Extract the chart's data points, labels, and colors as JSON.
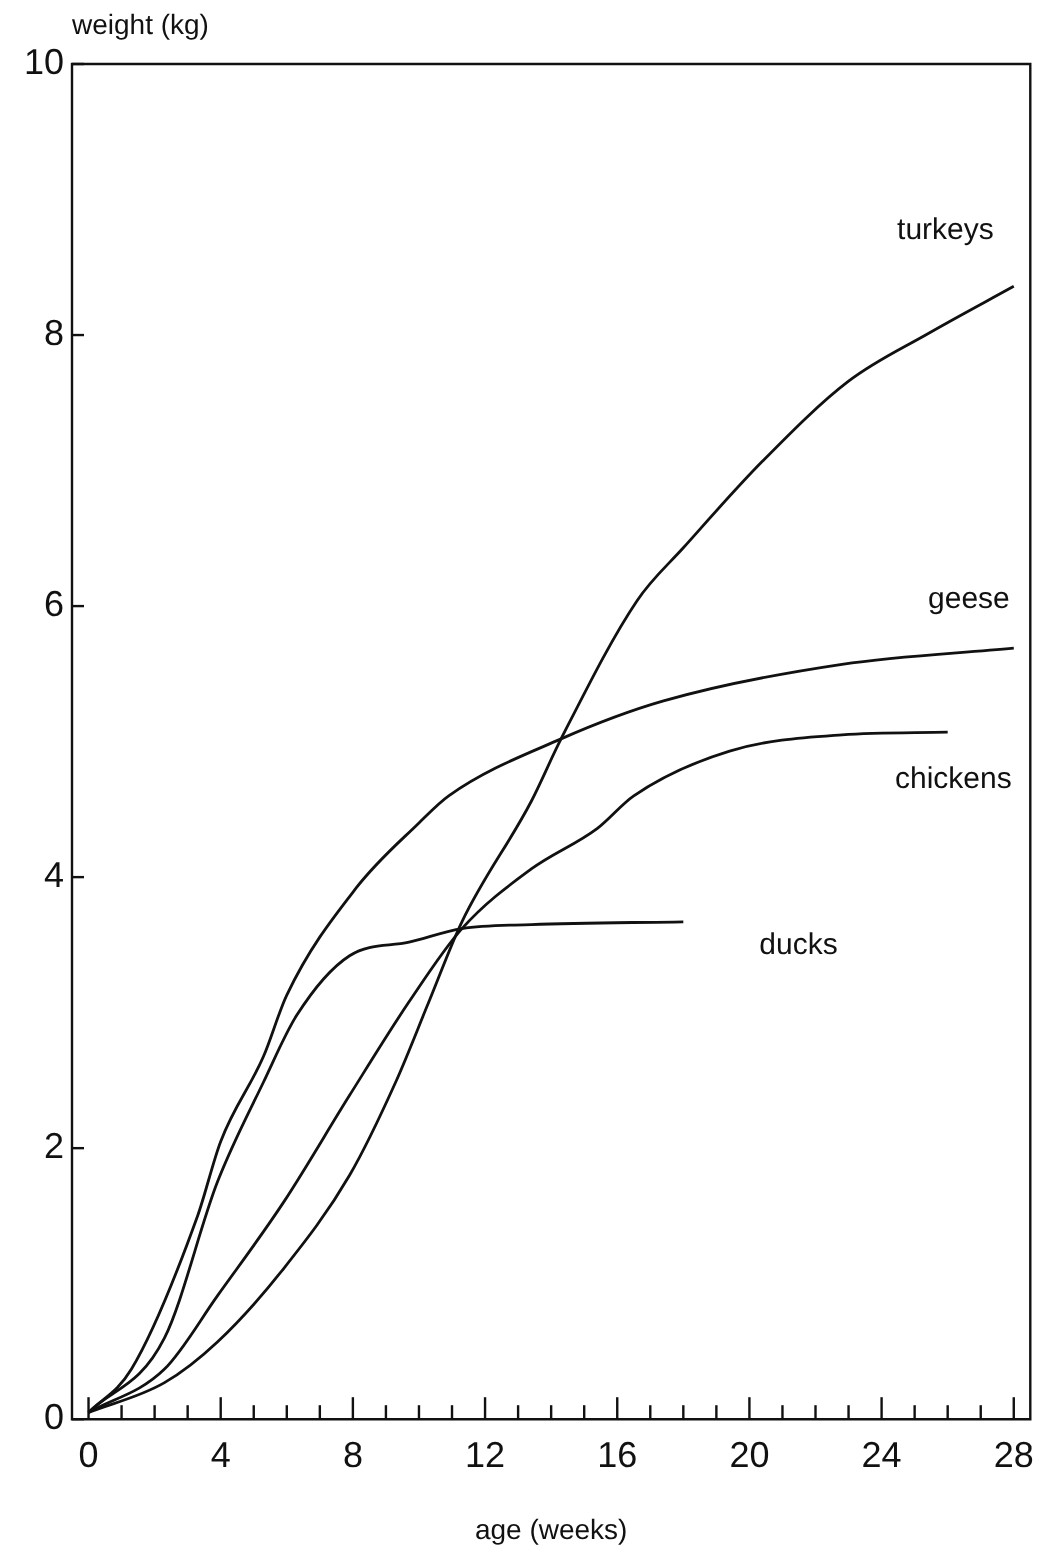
{
  "chart_data": {
    "type": "line",
    "xlabel": "age (weeks)",
    "ylabel": "weight (kg)",
    "xlim": [
      -0.5,
      28.5
    ],
    "ylim": [
      0,
      10
    ],
    "xticks": [
      0,
      {
        "value": 1,
        "label": null
      },
      {
        "value": 2,
        "label": null
      },
      {
        "value": 3,
        "label": null
      },
      4,
      {
        "value": 5,
        "label": null
      },
      {
        "value": 6,
        "label": null
      },
      {
        "value": 7,
        "label": null
      },
      8,
      {
        "value": 9,
        "label": null
      },
      {
        "value": 10,
        "label": null
      },
      {
        "value": 11,
        "label": null
      },
      12,
      {
        "value": 13,
        "label": null
      },
      {
        "value": 14,
        "label": null
      },
      {
        "value": 15,
        "label": null
      },
      16,
      {
        "value": 17,
        "label": null
      },
      {
        "value": 18,
        "label": null
      },
      {
        "value": 19,
        "label": null
      },
      20,
      {
        "value": 21,
        "label": null
      },
      {
        "value": 22,
        "label": null
      },
      {
        "value": 23,
        "label": null
      },
      24,
      {
        "value": 25,
        "label": null
      },
      {
        "value": 26,
        "label": null
      },
      {
        "value": 27,
        "label": null
      },
      28
    ],
    "yticks": [
      0,
      2,
      4,
      6,
      8,
      10
    ],
    "grid": false,
    "legend": false,
    "marker": "none",
    "line_style": "solid",
    "series": [
      {
        "name": "turkeys",
        "color": "#111111",
        "x": [
          0,
          2.3,
          3.9,
          5.9,
          7.9,
          9.3,
          10.3,
          11.3,
          13.4,
          14.3,
          16.6,
          18,
          20.4,
          23,
          25.4,
          28
        ],
        "values": [
          0.05,
          0.27,
          0.57,
          1.11,
          1.8,
          2.49,
          3.08,
          3.67,
          4.56,
          5.02,
          6.04,
          6.43,
          7.07,
          7.66,
          8.01,
          8.36
        ]
      },
      {
        "name": "geese",
        "color": "#111111",
        "x": [
          0,
          1.3,
          3.3,
          4,
          5.3,
          6,
          8.1,
          10,
          10.9,
          14.3,
          17.4,
          22.8,
          28
        ],
        "values": [
          0.05,
          0.37,
          1.5,
          2.05,
          2.68,
          3.13,
          3.92,
          4.4,
          4.6,
          5.02,
          5.3,
          5.57,
          5.69
        ]
      },
      {
        "name": "chickens",
        "color": "#111111",
        "x": [
          0,
          2.3,
          3.9,
          5.9,
          7.9,
          9.7,
          11.3,
          13.4,
          15.4,
          16.5,
          19.4,
          22.8,
          26
        ],
        "values": [
          0.05,
          0.37,
          0.91,
          1.6,
          2.39,
          3.08,
          3.62,
          4.06,
          4.36,
          4.6,
          4.93,
          5.05,
          5.07
        ]
      },
      {
        "name": "ducks",
        "color": "#111111",
        "x": [
          0,
          2.3,
          3.9,
          5.3,
          6.3,
          7.9,
          9.7,
          11.3,
          13.4,
          18
        ],
        "values": [
          0.05,
          0.6,
          1.75,
          2.49,
          2.98,
          3.42,
          3.52,
          3.62,
          3.65,
          3.67
        ]
      }
    ]
  }
}
